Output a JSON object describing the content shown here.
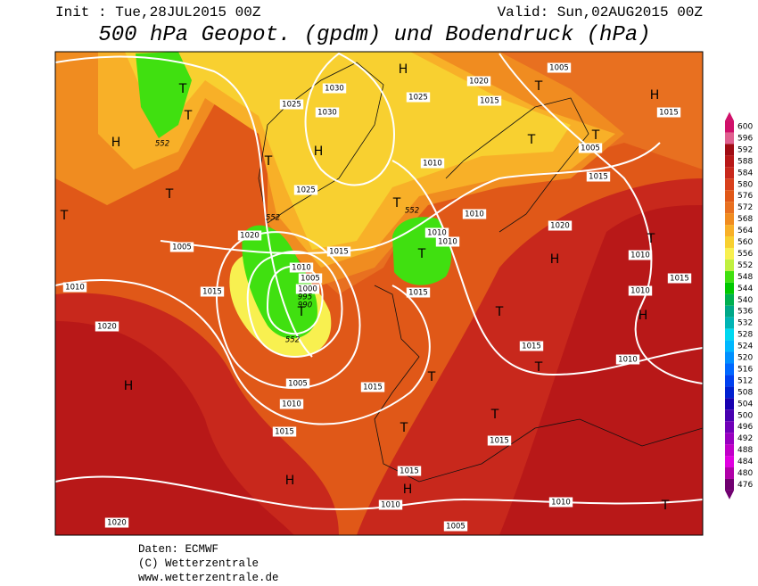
{
  "header": {
    "init": "Init : Tue,28JUL2015 00Z",
    "valid": "Valid: Sun,02AUG2015 00Z",
    "title": "500 hPa Geopot. (gpdm) und Bodendruck (hPa)"
  },
  "colorbar": {
    "levels": [
      600,
      596,
      592,
      588,
      584,
      580,
      576,
      572,
      568,
      564,
      560,
      556,
      552,
      548,
      544,
      540,
      536,
      532,
      528,
      524,
      520,
      516,
      512,
      508,
      504,
      500,
      496,
      492,
      488,
      484,
      480,
      476
    ],
    "colors": [
      "#d0106a",
      "#e06090",
      "#a00c14",
      "#b81818",
      "#c8281c",
      "#d8401c",
      "#e05818",
      "#e87020",
      "#f08c20",
      "#f8b028",
      "#f8d030",
      "#f8f050",
      "#c0f040",
      "#40e010",
      "#00c800",
      "#00b050",
      "#00a888",
      "#00b4b4",
      "#00d8f0",
      "#00b8ff",
      "#0090ff",
      "#0068ff",
      "#0040f0",
      "#0020d0",
      "#1800b0",
      "#4800b0",
      "#7000b8",
      "#9800c0",
      "#c000c8",
      "#e000e0",
      "#b000a8",
      "#700070"
    ]
  },
  "map": {
    "labels": [
      "1005",
      "H",
      "1020",
      "T",
      "H",
      "1030",
      "1025",
      "1015",
      "1025",
      "1030",
      "1015",
      "T",
      "T",
      "552",
      "H",
      "T",
      "T",
      "1005",
      "H",
      "T",
      "1010",
      "1015",
      "T",
      "1025",
      "T",
      "552",
      "T",
      "552",
      "1010",
      "1020",
      "1020",
      "1010",
      "1010",
      "T",
      "1005",
      "1015",
      "T",
      "H",
      "1010",
      "1015",
      "1010",
      "1015",
      "1010",
      "1005",
      "1000",
      "995",
      "990",
      "T",
      "1015",
      "1010",
      "H",
      "T",
      "1020",
      "552",
      "1015",
      "T",
      "1010",
      "H",
      "1005",
      "T",
      "1015",
      "1010",
      "T",
      "T",
      "1015",
      "1015",
      "1015",
      "H",
      "H",
      "1010",
      "1010",
      "T",
      "1020",
      "1005"
    ]
  },
  "footer": {
    "source": "Daten: ECMWF",
    "copyright": "(C) Wetterzentrale",
    "url": "www.wetterzentrale.de"
  }
}
